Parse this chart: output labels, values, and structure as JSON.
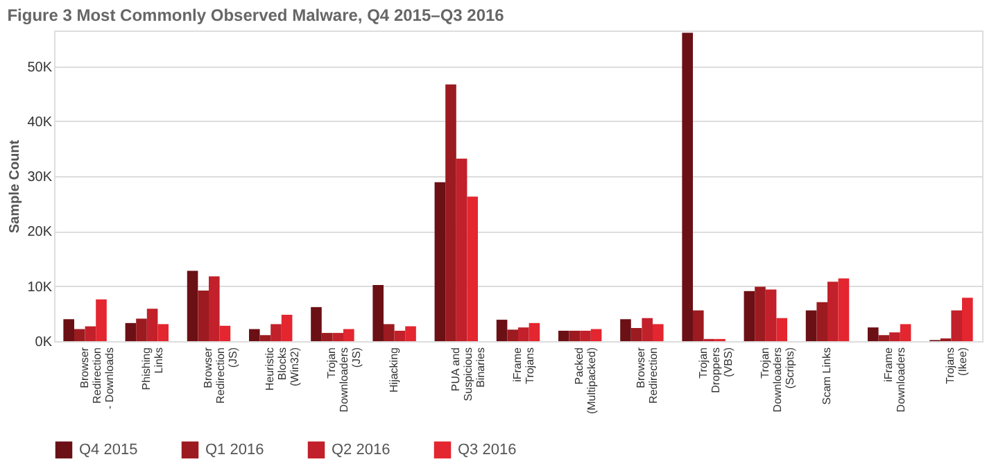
{
  "chart_data": {
    "type": "bar",
    "title": "Figure 3   Most Commonly Observed Malware, Q4 2015–Q3 2016",
    "ylabel": "Sample Count",
    "categories": [
      "Browser Redirection - Downloads",
      "Phishing Links",
      "Browser Redirection (JS)",
      "Heuristic Blocks (Win32)",
      "Trojan Downloaders (JS)",
      "Hijacking",
      "PUA and Suspicious Binaries",
      "iFrame Trojans",
      "Packed (Multipacked)",
      "Browser Redirection",
      "Trojan Droppers (VBS)",
      "Trojan Downloaders (Scripts)",
      "Scam Links",
      "iFrame Downloaders",
      "Trojans (Ikee)"
    ],
    "series": [
      {
        "name": "Q4 2015",
        "color": "#6b1015",
        "values": [
          4000,
          3300,
          12800,
          2200,
          6200,
          10200,
          28900,
          3900,
          1900,
          4000,
          56100,
          9100,
          5600,
          2500,
          200
        ]
      },
      {
        "name": "Q1 2016",
        "color": "#9b1b20",
        "values": [
          2200,
          4100,
          9200,
          1100,
          1500,
          3100,
          46700,
          2100,
          1900,
          2400,
          5600,
          9900,
          7100,
          1100,
          500
        ]
      },
      {
        "name": "Q2 2016",
        "color": "#c2202a",
        "values": [
          2700,
          5900,
          11800,
          3100,
          1500,
          1900,
          33200,
          2500,
          1900,
          4200,
          400,
          9400,
          10800,
          1600,
          5600
        ]
      },
      {
        "name": "Q3 2016",
        "color": "#e3262f",
        "values": [
          7600,
          3100,
          2800,
          4800,
          2200,
          2700,
          26300,
          3300,
          2200,
          3100,
          400,
          4200,
          11400,
          3100,
          7900
        ]
      }
    ],
    "ylim": [
      0,
      56500
    ],
    "yticks": [
      {
        "value": 0,
        "label": "0K"
      },
      {
        "value": 10000,
        "label": "10K"
      },
      {
        "value": 20000,
        "label": "20K"
      },
      {
        "value": 30000,
        "label": "30K"
      },
      {
        "value": 40000,
        "label": "40K"
      },
      {
        "value": 50000,
        "label": "50K"
      }
    ],
    "grid": "y",
    "legend": "bottom"
  }
}
